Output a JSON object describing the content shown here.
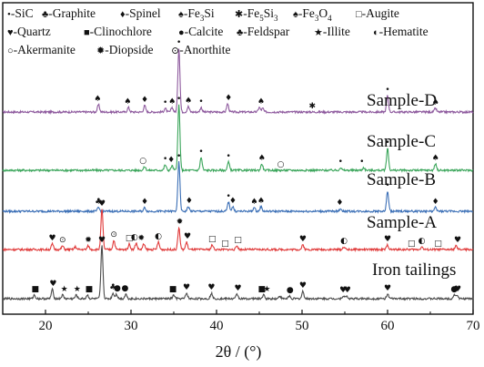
{
  "chart_data": {
    "type": "line",
    "title": "",
    "xlabel": "2θ / (°)",
    "ylabel": "",
    "xlim": [
      15,
      70
    ],
    "xticks": [
      20,
      30,
      40,
      50,
      60,
      70
    ],
    "y_ticks_shown": false,
    "grid": false,
    "legend": {
      "placement": "top-left",
      "rows": [
        [
          {
            "symbol": "•",
            "label": "-SiC"
          },
          {
            "symbol": "♣",
            "label": "-Graphite"
          },
          {
            "symbol": "♦",
            "label": "-Spinel"
          },
          {
            "symbol": "♠",
            "label": "-Fe",
            "sub": "3",
            "tail": "Si"
          },
          {
            "symbol": "✱",
            "label": "-Fe",
            "sub": "5",
            "tail": "Si",
            "sub2": "3"
          },
          {
            "symbol": "♠",
            "label": "-Fe",
            "sub": "3",
            "tail": "O",
            "sub2": "4"
          },
          {
            "symbol": "□",
            "label": "-Augite"
          }
        ],
        [
          {
            "symbol": "♥",
            "label": "-Quartz"
          },
          {
            "symbol": "■",
            "label": "-Clinochlore"
          },
          {
            "symbol": "●",
            "label": "-Calcite"
          },
          {
            "symbol": "♣",
            "label": "-Feldspar"
          },
          {
            "symbol": "★",
            "label": "-Illite"
          },
          {
            "symbol": "◐",
            "label": "-Hematite"
          }
        ],
        [
          {
            "symbol": "○",
            "label": "-Akermanite"
          },
          {
            "symbol": "✹",
            "label": "-Diopside"
          },
          {
            "symbol": "⊙",
            "label": "-Anorthite"
          }
        ]
      ]
    },
    "series": [
      {
        "name": "Sample-D",
        "color": "#8e5a9e",
        "baseline_row": 0,
        "peaks": [
          [
            26.2,
            8
          ],
          [
            29.7,
            5
          ],
          [
            31.6,
            7
          ],
          [
            34.0,
            4
          ],
          [
            34.8,
            5
          ],
          [
            35.6,
            70
          ],
          [
            36.7,
            6
          ],
          [
            38.2,
            5
          ],
          [
            41.3,
            9
          ],
          [
            45.0,
            5
          ],
          [
            45.4,
            4
          ],
          [
            60.0,
            18
          ],
          [
            65.6,
            4
          ]
        ],
        "markers": [
          {
            "x": 26.1,
            "s": "♠"
          },
          {
            "x": 29.6,
            "s": "♠"
          },
          {
            "x": 31.6,
            "s": "♦"
          },
          {
            "x": 34.0,
            "s": "•"
          },
          {
            "x": 34.8,
            "s": "♠"
          },
          {
            "x": 35.6,
            "s": "•"
          },
          {
            "x": 36.7,
            "s": "♠"
          },
          {
            "x": 38.2,
            "s": "•"
          },
          {
            "x": 41.4,
            "s": "♦"
          },
          {
            "x": 45.2,
            "s": "♠"
          },
          {
            "x": 51.2,
            "s": "✱"
          },
          {
            "x": 60.0,
            "s": "•"
          },
          {
            "x": 65.6,
            "s": "♠"
          }
        ]
      },
      {
        "name": "Sample-C",
        "color": "#3aa55a",
        "baseline_row": 1,
        "peaks": [
          [
            31.6,
            4
          ],
          [
            34.0,
            6
          ],
          [
            34.8,
            5
          ],
          [
            35.6,
            72
          ],
          [
            38.2,
            14
          ],
          [
            41.4,
            9
          ],
          [
            45.3,
            7
          ],
          [
            54.5,
            3
          ],
          [
            57.2,
            3
          ],
          [
            60.0,
            24
          ],
          [
            65.6,
            7
          ]
        ],
        "markers": [
          {
            "x": 31.4,
            "s": "○"
          },
          {
            "x": 34.0,
            "s": "•"
          },
          {
            "x": 34.7,
            "s": "♦"
          },
          {
            "x": 35.6,
            "s": "•"
          },
          {
            "x": 38.2,
            "s": "•"
          },
          {
            "x": 41.4,
            "s": "•"
          },
          {
            "x": 45.3,
            "s": "♠"
          },
          {
            "x": 47.5,
            "s": "○"
          },
          {
            "x": 54.5,
            "s": "•"
          },
          {
            "x": 57.0,
            "s": "•"
          },
          {
            "x": 60.0,
            "s": "•"
          },
          {
            "x": 65.6,
            "s": "♠"
          }
        ]
      },
      {
        "name": "Sample-B",
        "color": "#3b6fb6",
        "baseline_row": 2,
        "peaks": [
          [
            26.2,
            4
          ],
          [
            31.6,
            4
          ],
          [
            35.6,
            54
          ],
          [
            36.7,
            5
          ],
          [
            41.4,
            10
          ],
          [
            41.9,
            5
          ],
          [
            44.4,
            4
          ],
          [
            45.2,
            5
          ],
          [
            54.5,
            3
          ],
          [
            60.0,
            22
          ],
          [
            65.6,
            4
          ]
        ],
        "markers": [
          {
            "x": 26.2,
            "s": "♣"
          },
          {
            "x": 31.6,
            "s": "♦"
          },
          {
            "x": 35.6,
            "s": "•"
          },
          {
            "x": 36.8,
            "s": "♦"
          },
          {
            "x": 41.4,
            "s": "•"
          },
          {
            "x": 41.9,
            "s": "♦"
          },
          {
            "x": 44.4,
            "s": "♠"
          },
          {
            "x": 45.2,
            "s": "♠"
          },
          {
            "x": 54.4,
            "s": "♦"
          },
          {
            "x": 60.0,
            "s": "•"
          },
          {
            "x": 65.6,
            "s": "♦"
          }
        ]
      },
      {
        "name": "Sample-A",
        "color": "#e03a3a",
        "baseline_row": 3,
        "peaks": [
          [
            20.8,
            6
          ],
          [
            22.0,
            4
          ],
          [
            23.5,
            3
          ],
          [
            25.0,
            4
          ],
          [
            26.6,
            44
          ],
          [
            28.0,
            10
          ],
          [
            29.8,
            6
          ],
          [
            30.6,
            7
          ],
          [
            31.5,
            6
          ],
          [
            33.2,
            8
          ],
          [
            35.6,
            24
          ],
          [
            36.5,
            8
          ],
          [
            39.5,
            5
          ],
          [
            42.4,
            4
          ],
          [
            50.1,
            5
          ],
          [
            54.9,
            3
          ],
          [
            60.0,
            5
          ],
          [
            64.0,
            3
          ],
          [
            68.0,
            4
          ]
        ],
        "markers": [
          {
            "x": 20.8,
            "s": "♥"
          },
          {
            "x": 22.0,
            "s": "⊙"
          },
          {
            "x": 25.0,
            "s": "✹"
          },
          {
            "x": 26.6,
            "s": "♥"
          },
          {
            "x": 28.0,
            "s": "⊙"
          },
          {
            "x": 29.8,
            "s": "□"
          },
          {
            "x": 30.4,
            "s": "◐"
          },
          {
            "x": 31.2,
            "s": "✹"
          },
          {
            "x": 33.2,
            "s": "◐"
          },
          {
            "x": 35.7,
            "s": "✹"
          },
          {
            "x": 36.6,
            "s": "♥"
          },
          {
            "x": 39.5,
            "s": "□"
          },
          {
            "x": 41.0,
            "s": "□"
          },
          {
            "x": 42.5,
            "s": "□"
          },
          {
            "x": 50.1,
            "s": "♥"
          },
          {
            "x": 54.9,
            "s": "◐"
          },
          {
            "x": 60.0,
            "s": "♥"
          },
          {
            "x": 62.8,
            "s": "□"
          },
          {
            "x": 64.0,
            "s": "◐"
          },
          {
            "x": 65.9,
            "s": "□"
          },
          {
            "x": 68.2,
            "s": "♥"
          }
        ]
      },
      {
        "name": "Iron tailings",
        "color": "#4a4a4a",
        "baseline_row": 4,
        "peaks": [
          [
            18.7,
            4
          ],
          [
            20.8,
            10
          ],
          [
            22.0,
            4
          ],
          [
            23.6,
            4
          ],
          [
            24.9,
            4
          ],
          [
            26.6,
            58
          ],
          [
            27.9,
            6
          ],
          [
            28.3,
            5
          ],
          [
            29.4,
            5
          ],
          [
            35.0,
            4
          ],
          [
            36.5,
            6
          ],
          [
            39.4,
            6
          ],
          [
            42.4,
            5
          ],
          [
            45.5,
            4
          ],
          [
            47.4,
            3
          ],
          [
            48.5,
            3
          ],
          [
            50.1,
            8
          ],
          [
            54.8,
            3
          ],
          [
            55.2,
            3
          ],
          [
            60.0,
            5
          ],
          [
            67.8,
            4
          ],
          [
            68.1,
            4
          ]
        ],
        "markers": [
          {
            "x": 18.8,
            "s": "■"
          },
          {
            "x": 20.9,
            "s": "♥"
          },
          {
            "x": 22.2,
            "s": "★"
          },
          {
            "x": 23.7,
            "s": "★"
          },
          {
            "x": 25.1,
            "s": "■"
          },
          {
            "x": 26.6,
            "s": "♥"
          },
          {
            "x": 27.9,
            "s": "♣"
          },
          {
            "x": 28.4,
            "s": "●"
          },
          {
            "x": 29.3,
            "s": "●"
          },
          {
            "x": 34.9,
            "s": "■"
          },
          {
            "x": 36.5,
            "s": "♥"
          },
          {
            "x": 39.4,
            "s": "♥"
          },
          {
            "x": 42.5,
            "s": "♥"
          },
          {
            "x": 45.3,
            "s": "■"
          },
          {
            "x": 45.9,
            "s": "★"
          },
          {
            "x": 48.6,
            "s": "●"
          },
          {
            "x": 50.1,
            "s": "♥"
          },
          {
            "x": 54.8,
            "s": "♥"
          },
          {
            "x": 55.3,
            "s": "♥"
          },
          {
            "x": 60.0,
            "s": "♥"
          },
          {
            "x": 67.8,
            "s": "●"
          },
          {
            "x": 68.2,
            "s": "♥"
          }
        ]
      }
    ]
  }
}
